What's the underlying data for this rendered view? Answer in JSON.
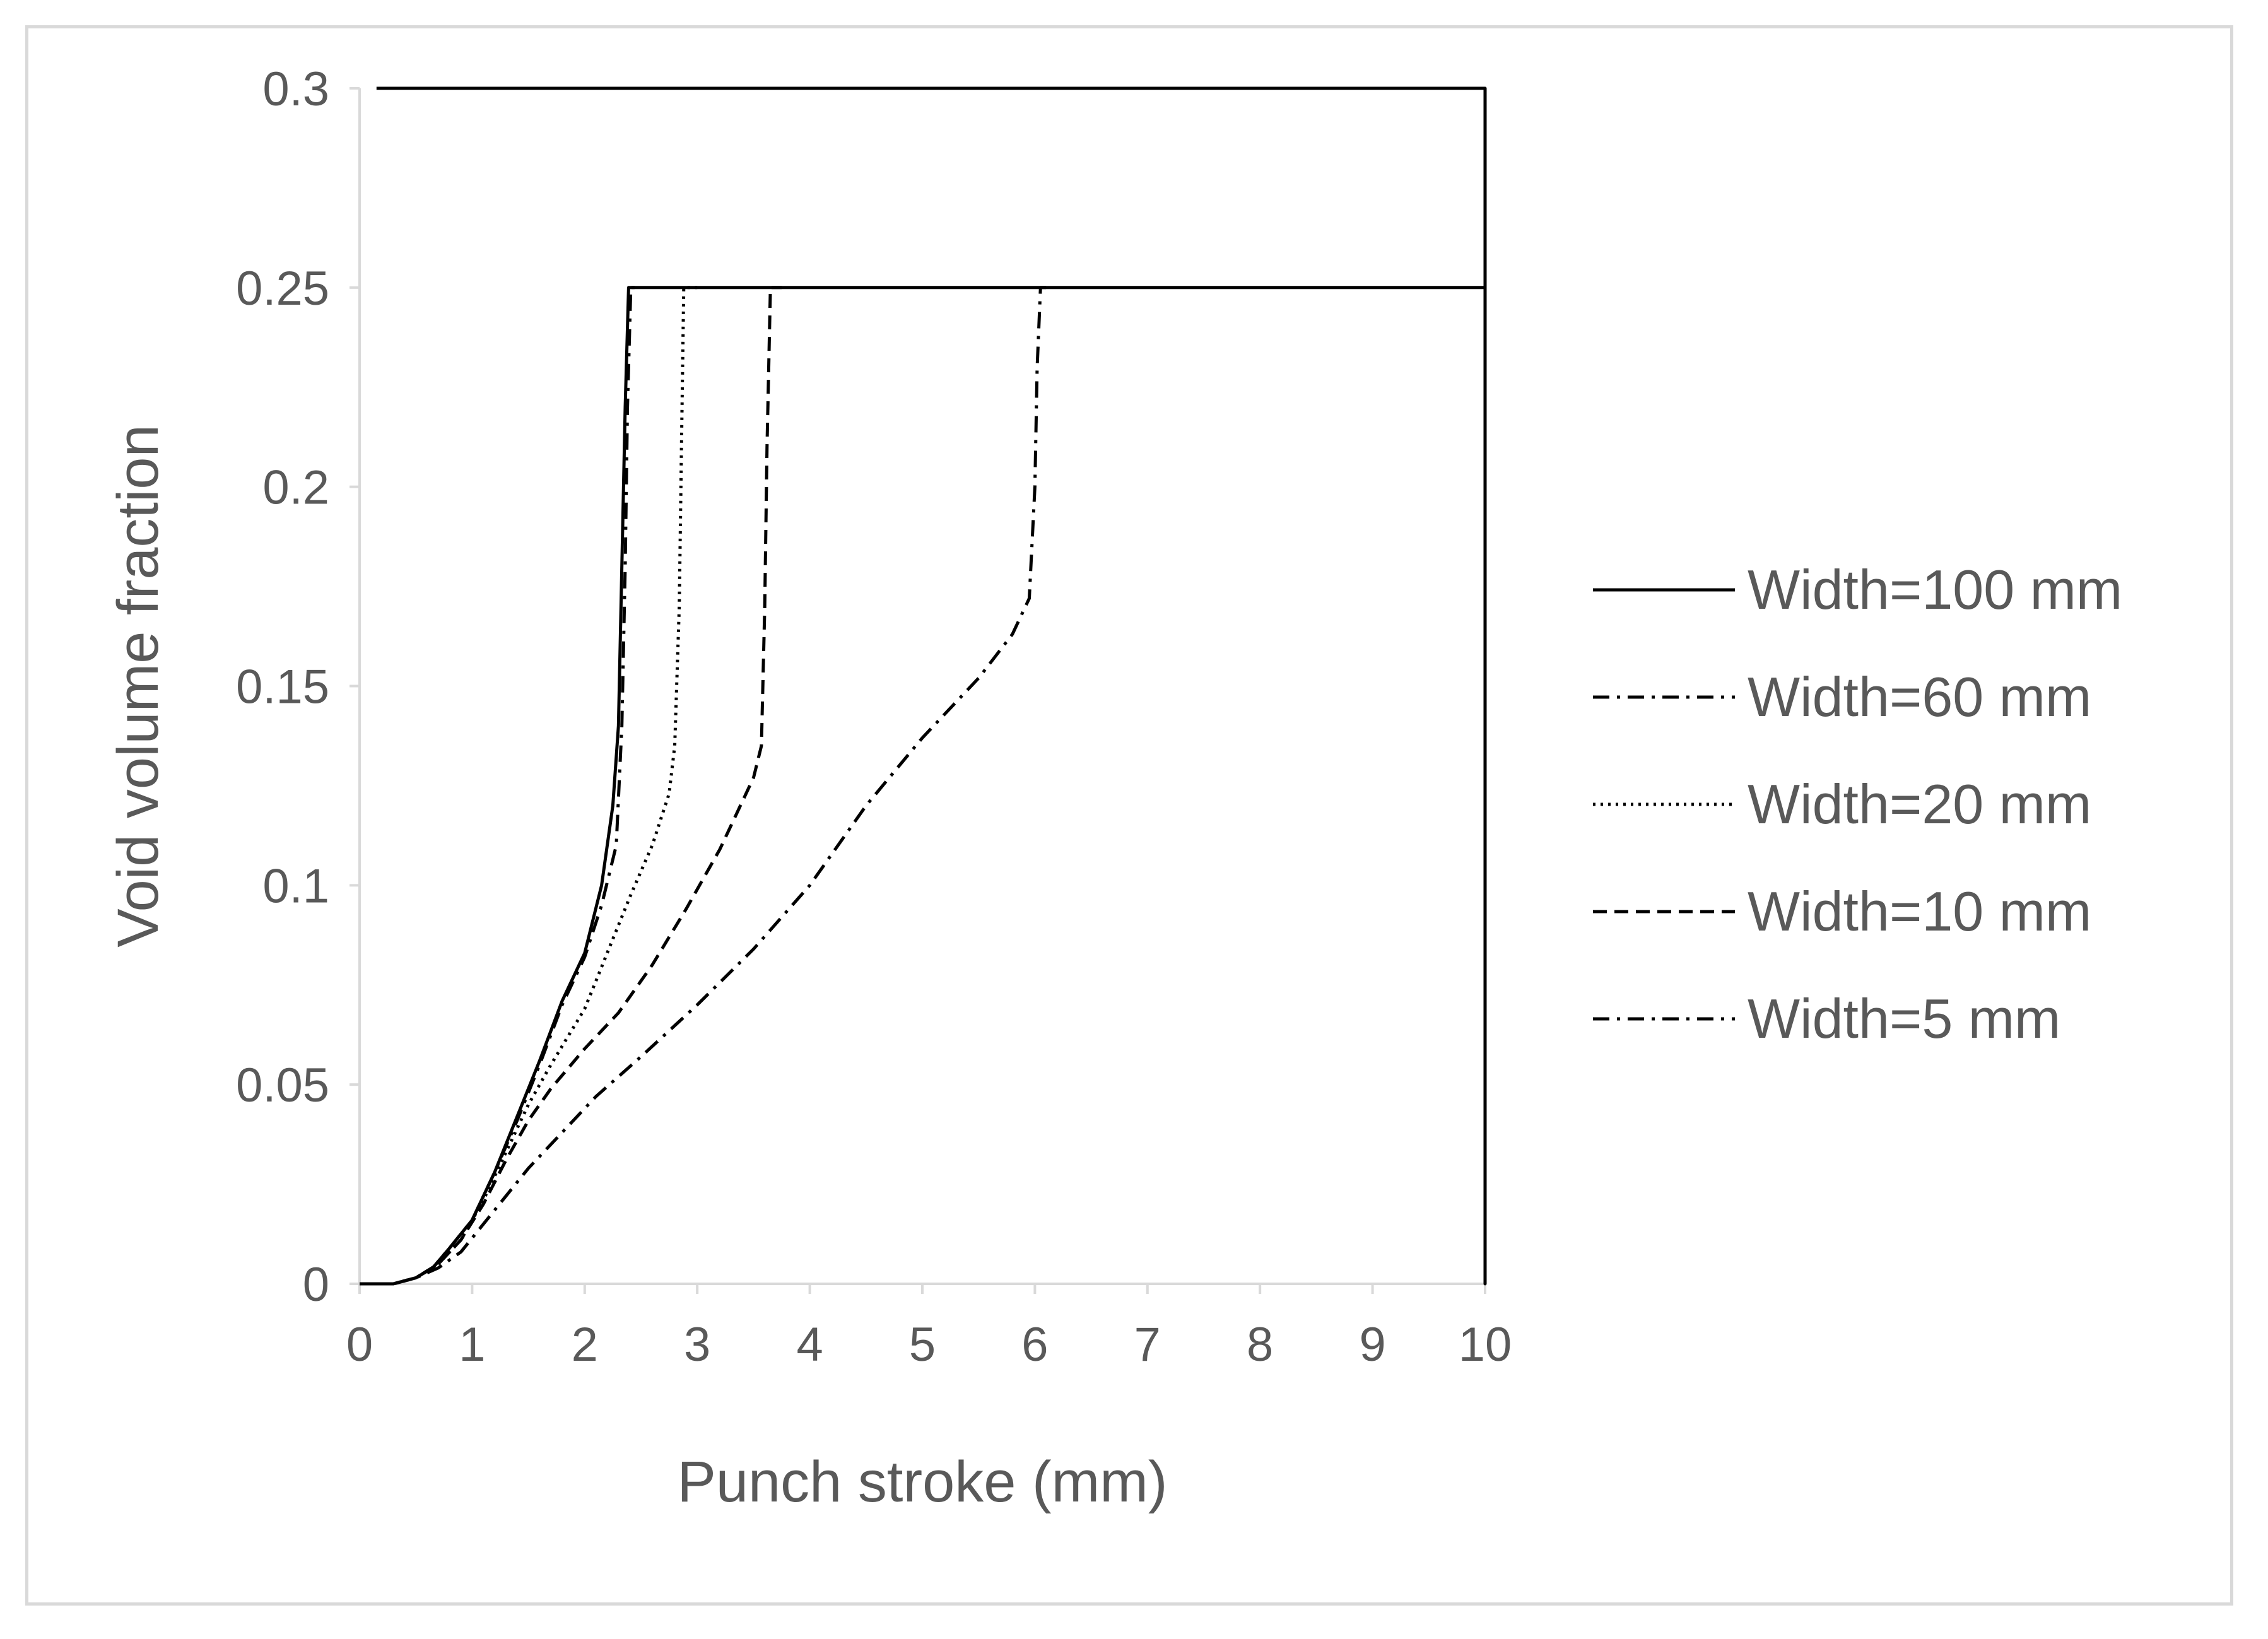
{
  "chart_data": {
    "type": "line",
    "title": "",
    "xlabel": "Punch stroke (mm)",
    "ylabel": "Void volume fraction",
    "xlim": [
      0,
      10
    ],
    "ylim": [
      0,
      0.3
    ],
    "x_ticks": [
      "0",
      "1",
      "2",
      "3",
      "4",
      "5",
      "6",
      "7",
      "8",
      "9",
      "10"
    ],
    "y_ticks": [
      "0",
      "0.05",
      "0.1",
      "0.15",
      "0.2",
      "0.25",
      "0.3"
    ],
    "grid": false,
    "legend_position": "right",
    "line_color": "#000000",
    "text_color": "#595959",
    "series": [
      {
        "name": "Width=100 mm",
        "style": "solid",
        "points": [
          [
            0,
            0
          ],
          [
            0.3,
            0
          ],
          [
            0.5,
            0.0015
          ],
          [
            0.65,
            0.004
          ],
          [
            0.8,
            0.009
          ],
          [
            1.0,
            0.016
          ],
          [
            1.2,
            0.028
          ],
          [
            1.4,
            0.042
          ],
          [
            1.6,
            0.056
          ],
          [
            1.8,
            0.071
          ],
          [
            2.0,
            0.083
          ],
          [
            2.15,
            0.1
          ],
          [
            2.25,
            0.12
          ],
          [
            2.3,
            0.14
          ],
          [
            2.33,
            0.18
          ],
          [
            2.36,
            0.22
          ],
          [
            2.39,
            0.25
          ],
          [
            2.5,
            0.25
          ],
          [
            10,
            0.25
          ],
          [
            10,
            0
          ],
          [
            10,
            0.3
          ],
          [
            0.15,
            0.3
          ]
        ]
      },
      {
        "name": "Width=60 mm",
        "style": "dashdot",
        "points": [
          [
            0,
            0
          ],
          [
            0.3,
            0
          ],
          [
            0.5,
            0.0015
          ],
          [
            0.65,
            0.004
          ],
          [
            0.8,
            0.009
          ],
          [
            1.0,
            0.016
          ],
          [
            1.2,
            0.028
          ],
          [
            1.4,
            0.041
          ],
          [
            1.6,
            0.055
          ],
          [
            1.8,
            0.07
          ],
          [
            2.0,
            0.082
          ],
          [
            2.15,
            0.095
          ],
          [
            2.28,
            0.11
          ],
          [
            2.33,
            0.14
          ],
          [
            2.36,
            0.18
          ],
          [
            2.38,
            0.22
          ],
          [
            2.41,
            0.25
          ],
          [
            2.5,
            0.25
          ]
        ]
      },
      {
        "name": "Width=20 mm",
        "style": "dotted",
        "points": [
          [
            0,
            0
          ],
          [
            0.3,
            0
          ],
          [
            0.5,
            0.0015
          ],
          [
            0.7,
            0.005
          ],
          [
            0.9,
            0.011
          ],
          [
            1.1,
            0.021
          ],
          [
            1.3,
            0.033
          ],
          [
            1.5,
            0.045
          ],
          [
            1.7,
            0.055
          ],
          [
            2.0,
            0.069
          ],
          [
            2.2,
            0.083
          ],
          [
            2.4,
            0.097
          ],
          [
            2.6,
            0.11
          ],
          [
            2.75,
            0.123
          ],
          [
            2.8,
            0.135
          ],
          [
            2.84,
            0.17
          ],
          [
            2.86,
            0.21
          ],
          [
            2.88,
            0.25
          ],
          [
            3.0,
            0.25
          ]
        ]
      },
      {
        "name": "Width=10 mm",
        "style": "dashed",
        "points": [
          [
            0,
            0
          ],
          [
            0.3,
            0
          ],
          [
            0.5,
            0.0015
          ],
          [
            0.7,
            0.005
          ],
          [
            0.9,
            0.011
          ],
          [
            1.1,
            0.02
          ],
          [
            1.3,
            0.031
          ],
          [
            1.5,
            0.041
          ],
          [
            1.7,
            0.049
          ],
          [
            2.0,
            0.059
          ],
          [
            2.3,
            0.068
          ],
          [
            2.6,
            0.08
          ],
          [
            2.9,
            0.094
          ],
          [
            3.2,
            0.109
          ],
          [
            3.5,
            0.127
          ],
          [
            3.57,
            0.135
          ],
          [
            3.6,
            0.17
          ],
          [
            3.62,
            0.21
          ],
          [
            3.65,
            0.25
          ],
          [
            3.75,
            0.25
          ]
        ]
      },
      {
        "name": "Width=5 mm",
        "style": "dashdot",
        "points": [
          [
            0,
            0
          ],
          [
            0.3,
            0
          ],
          [
            0.5,
            0.0015
          ],
          [
            0.7,
            0.004
          ],
          [
            0.9,
            0.008
          ],
          [
            1.1,
            0.015
          ],
          [
            1.3,
            0.022
          ],
          [
            1.5,
            0.029
          ],
          [
            1.8,
            0.038
          ],
          [
            2.1,
            0.047
          ],
          [
            2.5,
            0.057
          ],
          [
            3.0,
            0.07
          ],
          [
            3.5,
            0.084
          ],
          [
            4.0,
            0.1
          ],
          [
            4.5,
            0.12
          ],
          [
            5.0,
            0.137
          ],
          [
            5.5,
            0.152
          ],
          [
            5.8,
            0.163
          ],
          [
            5.95,
            0.172
          ],
          [
            6.0,
            0.2
          ],
          [
            6.02,
            0.23
          ],
          [
            6.05,
            0.25
          ],
          [
            6.1,
            0.25
          ]
        ]
      }
    ]
  }
}
